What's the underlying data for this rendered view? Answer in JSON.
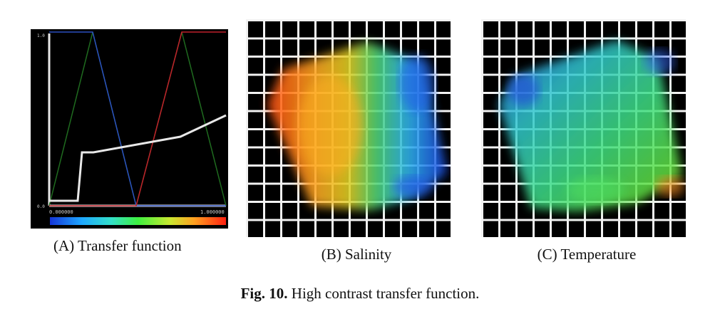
{
  "panels": {
    "a": {
      "caption": "(A) Transfer function",
      "y_max_label": "1.0",
      "y_min_label": "0.0",
      "x_min_label": "0.000000",
      "x_max_label": "1.000000"
    },
    "b": {
      "caption": "(B) Salinity"
    },
    "c": {
      "caption": "(C) Temperature"
    }
  },
  "figure": {
    "label": "Fig. 10.",
    "text": " High contrast transfer function."
  },
  "colors": {
    "background": "#000000",
    "grid_line": "#f2f2f2",
    "red_channel": "#c0202a",
    "green_channel": "#1f6b1f",
    "blue_channel": "#2a4fc0",
    "opacity_curve": "#e8e8e8"
  }
}
